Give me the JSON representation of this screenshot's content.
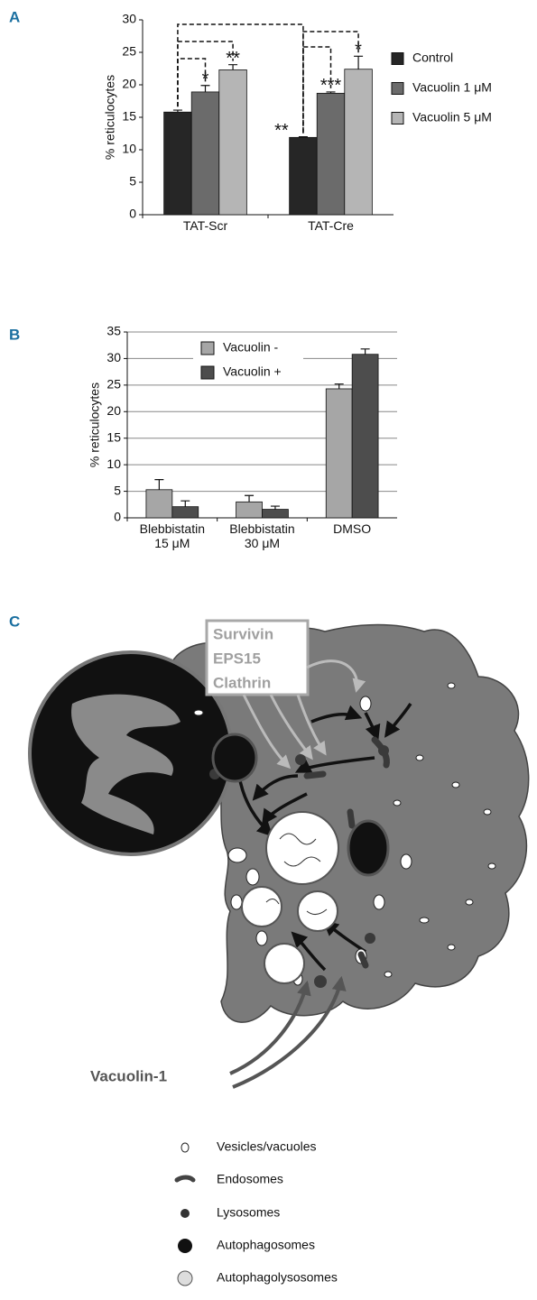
{
  "panels": {
    "a": "A",
    "b": "B",
    "c": "C"
  },
  "chart_data": [
    {
      "type": "bar",
      "ylabel": "% reticulocytes",
      "categories": [
        "TAT-Scr",
        "TAT-Cre"
      ],
      "series": [
        {
          "name": "Control",
          "color": "#262626",
          "values": [
            15.8,
            11.9
          ],
          "errors": [
            0.3,
            0.1
          ]
        },
        {
          "name": "Vacuolin 1 μM",
          "color": "#6b6b6b",
          "values": [
            18.9,
            18.7
          ],
          "errors": [
            1.0,
            0.2
          ]
        },
        {
          "name": "Vacuolin 5 μM",
          "color": "#b5b5b5",
          "values": [
            22.3,
            22.4
          ],
          "errors": [
            0.8,
            2.0
          ]
        }
      ],
      "annotations": [
        "*",
        "**",
        "**",
        "***",
        "*"
      ],
      "ylim": [
        0,
        30
      ],
      "yticks": [
        0,
        5,
        10,
        15,
        20,
        25,
        30
      ],
      "grid": false,
      "legend": "right"
    },
    {
      "type": "bar",
      "ylabel": "% reticulocytes",
      "categories": [
        "Blebbistatin\n15 μM",
        "Blebbistatin\n30 μM",
        "DMSO"
      ],
      "series": [
        {
          "name": "Vacuolin -",
          "color": "#a6a6a6",
          "values": [
            5.3,
            3.0,
            24.3
          ],
          "errors": [
            1.9,
            1.2,
            0.9
          ]
        },
        {
          "name": "Vacuolin +",
          "color": "#4d4d4d",
          "values": [
            2.1,
            1.6,
            30.8
          ],
          "errors": [
            1.1,
            0.6,
            1.0
          ]
        }
      ],
      "ylim": [
        0,
        35
      ],
      "yticks": [
        0,
        5,
        10,
        15,
        20,
        25,
        30,
        35
      ],
      "grid": true,
      "legend": "upper left"
    }
  ],
  "diagram": {
    "box_labels": [
      "Survivin",
      "EPS15",
      "Clathrin"
    ],
    "drug_label": "Vacuolin-1",
    "legend": [
      "Vesicles/vacuoles",
      "Endosomes",
      "Lysosomes",
      "Autophagosomes",
      "Autophagolysosomes"
    ]
  }
}
